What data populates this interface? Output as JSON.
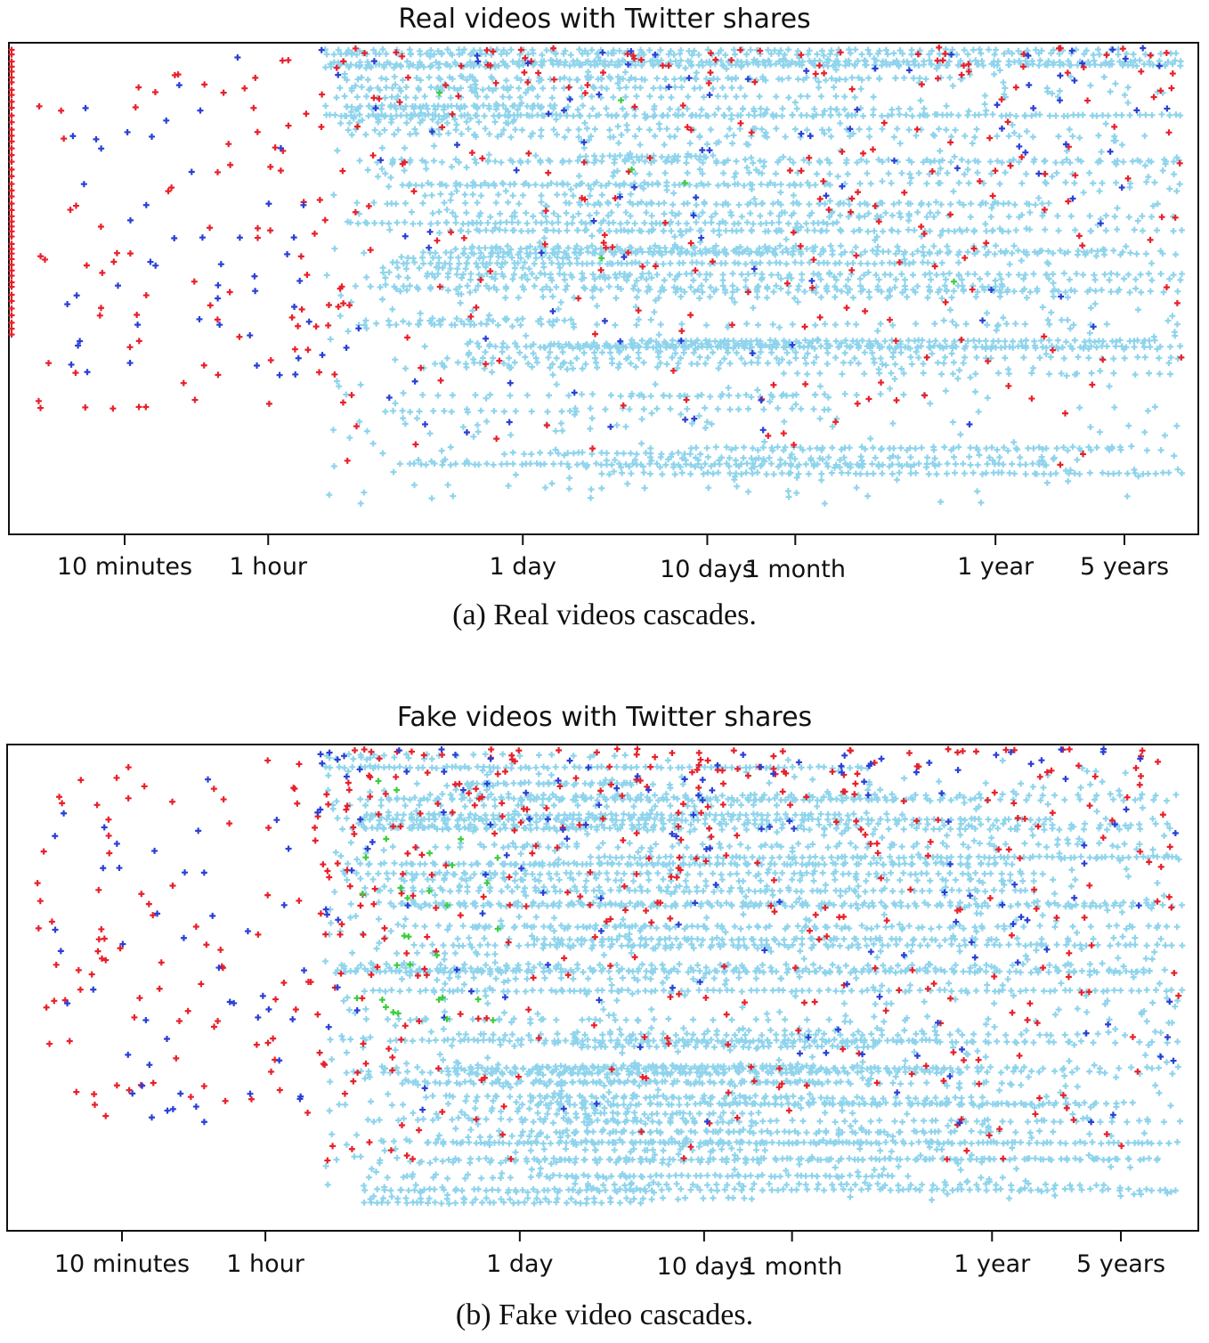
{
  "chart_data": [
    {
      "type": "scatter",
      "title": "Real videos with Twitter shares",
      "caption": "(a) Real videos cascades.",
      "xscale": "log",
      "xlabel": "",
      "ylabel": "",
      "x_ticks": [
        {
          "label": "10 minutes",
          "seconds": 600
        },
        {
          "label": "1 hour",
          "seconds": 3600
        },
        {
          "label": "1 day",
          "seconds": 86400
        },
        {
          "label": "10 days",
          "seconds": 864000
        },
        {
          "label": "1 month",
          "seconds": 2592000
        },
        {
          "label": "1 year",
          "seconds": 31536000
        },
        {
          "label": "5 years",
          "seconds": 157680000
        }
      ],
      "marker_colors": {
        "red": "#e8202a",
        "blue": "#2a3fd6",
        "light_blue": "#8fd4ec",
        "green": "#3ccc3c"
      },
      "legend": false,
      "grid": false
    },
    {
      "type": "scatter",
      "title": "Fake videos with Twitter shares",
      "caption": "(b) Fake video cascades.",
      "xscale": "log",
      "xlabel": "",
      "ylabel": "",
      "x_ticks": [
        {
          "label": "10 minutes",
          "seconds": 600
        },
        {
          "label": "1 hour",
          "seconds": 3600
        },
        {
          "label": "1 day",
          "seconds": 86400
        },
        {
          "label": "10 days",
          "seconds": 864000
        },
        {
          "label": "1 month",
          "seconds": 2592000
        },
        {
          "label": "1 year",
          "seconds": 31536000
        },
        {
          "label": "5 years",
          "seconds": 157680000
        }
      ],
      "marker_colors": {
        "red": "#e8202a",
        "blue": "#2a3fd6",
        "light_blue": "#8fd4ec",
        "green": "#3ccc3c"
      },
      "legend": false,
      "grid": false
    }
  ]
}
